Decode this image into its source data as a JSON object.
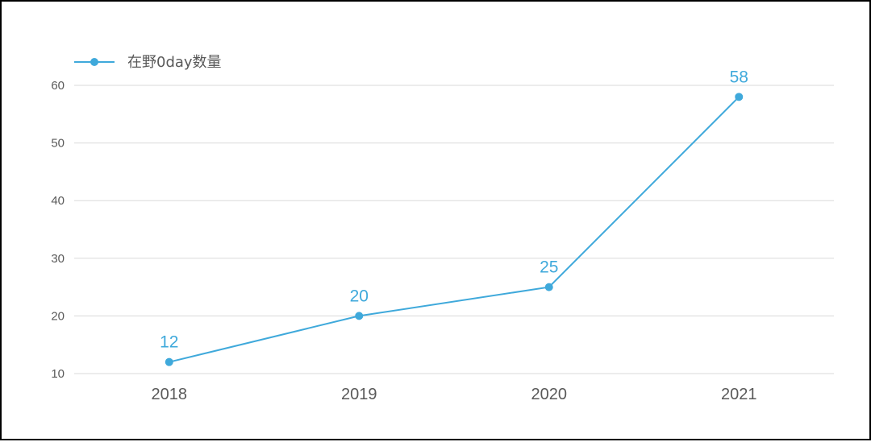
{
  "chart_data": {
    "type": "line",
    "title": "",
    "xlabel": "",
    "ylabel": "",
    "categories": [
      "2018",
      "2019",
      "2020",
      "2021"
    ],
    "series": [
      {
        "name": "在野0day数量",
        "values": [
          12,
          20,
          25,
          58
        ]
      }
    ],
    "data_labels": [
      "12",
      "20",
      "25",
      "58"
    ],
    "ylim": [
      10,
      60
    ],
    "yticks": [
      10,
      20,
      30,
      40,
      50,
      60
    ],
    "ytick_labels": [
      "10",
      "20",
      "30",
      "40",
      "50",
      "60"
    ],
    "grid": true,
    "legend_position": "top-left",
    "colors": {
      "series": "#3fa9db",
      "grid": "#d9d9d9",
      "text": "#595959"
    }
  }
}
